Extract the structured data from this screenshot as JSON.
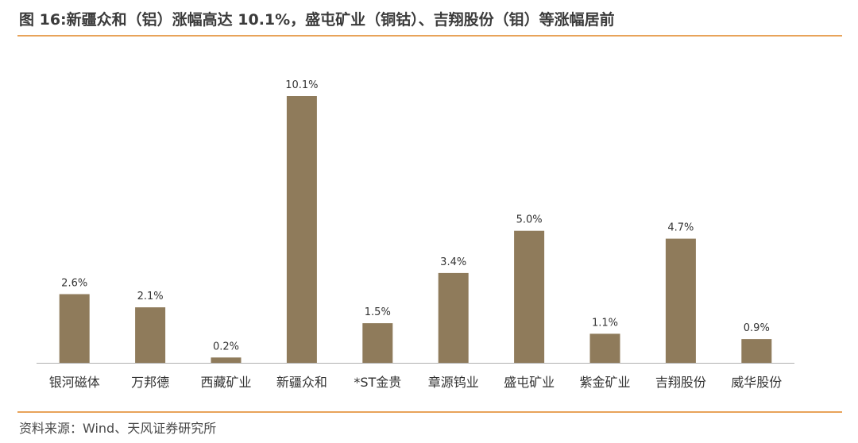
{
  "title": "图 16:新疆众和（铝）涨幅高达 10.1%，盛屯矿业（铜钴）、吉翔股份（钼）等涨幅居前",
  "source": "资料来源：Wind、天风证券研究所",
  "colors": {
    "accent": "#e8a35a",
    "bar": "#8f7b5b",
    "axis": "#b0b0b0",
    "text": "#333333"
  },
  "chart_data": {
    "type": "bar",
    "categories": [
      "银河磁体",
      "万邦德",
      "西藏矿业",
      "新疆众和",
      "*ST金贵",
      "章源钨业",
      "盛屯矿业",
      "紫金矿业",
      "吉翔股份",
      "威华股份"
    ],
    "values": [
      2.6,
      2.1,
      0.2,
      10.1,
      1.5,
      3.4,
      5.0,
      1.1,
      4.7,
      0.9
    ],
    "data_labels": [
      "2.6%",
      "2.1%",
      "0.2%",
      "10.1%",
      "1.5%",
      "3.4%",
      "5.0%",
      "1.1%",
      "4.7%",
      "0.9%"
    ],
    "unit": "%",
    "ylim": [
      0,
      10.1
    ],
    "grid": false,
    "legend": "none",
    "xlabel": "",
    "ylabel": ""
  }
}
